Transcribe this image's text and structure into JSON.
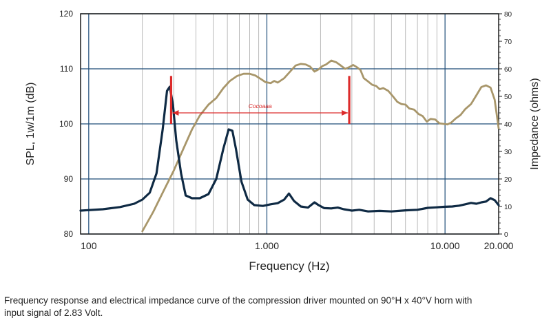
{
  "chart_data": {
    "type": "line",
    "x_axis": {
      "label": "Frequency (Hz)",
      "scale": "log",
      "range": [
        90,
        20000
      ],
      "ticks": [
        {
          "value": 100,
          "label": "100"
        },
        {
          "value": 1000,
          "label": "1.000"
        },
        {
          "value": 10000,
          "label": "10.000"
        },
        {
          "value": 20000,
          "label": "20.000"
        }
      ]
    },
    "y_left": {
      "label": "SPL, 1w/1m (dB)",
      "range": [
        80,
        120
      ],
      "ticks": [
        {
          "value": 80,
          "label": "80"
        },
        {
          "value": 90,
          "label": "90"
        },
        {
          "value": 100,
          "label": "100"
        },
        {
          "value": 110,
          "label": "110"
        },
        {
          "value": 120,
          "label": "120"
        }
      ]
    },
    "y_right": {
      "label": "Impedance (ohms)",
      "range": [
        0,
        80
      ],
      "ticks": [
        {
          "value": 0,
          "label": "0"
        },
        {
          "value": 10,
          "label": "10"
        },
        {
          "value": 20,
          "label": "20"
        },
        {
          "value": 30,
          "label": "30"
        },
        {
          "value": 40,
          "label": "40"
        },
        {
          "value": 50,
          "label": "50"
        },
        {
          "value": 60,
          "label": "60"
        },
        {
          "value": 70,
          "label": "70"
        },
        {
          "value": 80,
          "label": "80"
        }
      ]
    },
    "grid": true,
    "series": [
      {
        "color": "#a8966a",
        "axis": "left",
        "points": [
          [
            200,
            80.5
          ],
          [
            230,
            84
          ],
          [
            260,
            87.5
          ],
          [
            300,
            91.5
          ],
          [
            340,
            95.5
          ],
          [
            380,
            99
          ],
          [
            420,
            101.5
          ],
          [
            470,
            103.5
          ],
          [
            520,
            104.7
          ],
          [
            570,
            106.5
          ],
          [
            620,
            107.8
          ],
          [
            680,
            108.7
          ],
          [
            740,
            109.1
          ],
          [
            800,
            109.1
          ],
          [
            860,
            108.8
          ],
          [
            920,
            108.2
          ],
          [
            980,
            107.6
          ],
          [
            1050,
            107.4
          ],
          [
            1100,
            107.8
          ],
          [
            1150,
            107.5
          ],
          [
            1250,
            108.3
          ],
          [
            1350,
            109.5
          ],
          [
            1450,
            110.6
          ],
          [
            1550,
            110.9
          ],
          [
            1650,
            110.8
          ],
          [
            1750,
            110.4
          ],
          [
            1850,
            109.5
          ],
          [
            1950,
            109.9
          ],
          [
            2050,
            110.5
          ],
          [
            2150,
            110.8
          ],
          [
            2300,
            111.5
          ],
          [
            2450,
            111.2
          ],
          [
            2600,
            110.6
          ],
          [
            2750,
            110.0
          ],
          [
            2900,
            110.3
          ],
          [
            3050,
            110.7
          ],
          [
            3200,
            110.3
          ],
          [
            3350,
            109.8
          ],
          [
            3500,
            108.3
          ],
          [
            3700,
            107.7
          ],
          [
            3900,
            107.1
          ],
          [
            4100,
            106.9
          ],
          [
            4300,
            106.3
          ],
          [
            4500,
            106.5
          ],
          [
            4800,
            106.0
          ],
          [
            5100,
            105.0
          ],
          [
            5400,
            104.0
          ],
          [
            5700,
            103.6
          ],
          [
            6000,
            103.5
          ],
          [
            6300,
            102.8
          ],
          [
            6700,
            102.6
          ],
          [
            7100,
            101.8
          ],
          [
            7500,
            101.4
          ],
          [
            7900,
            100.4
          ],
          [
            8300,
            100.9
          ],
          [
            8800,
            100.8
          ],
          [
            9300,
            100.1
          ],
          [
            9800,
            100.0
          ],
          [
            10300,
            99.9
          ],
          [
            10800,
            100.2
          ],
          [
            11500,
            101.0
          ],
          [
            12200,
            101.6
          ],
          [
            13000,
            102.7
          ],
          [
            14000,
            103.6
          ],
          [
            15000,
            105.2
          ],
          [
            16000,
            106.7
          ],
          [
            17000,
            107.0
          ],
          [
            18000,
            106.6
          ],
          [
            19000,
            104.4
          ],
          [
            20000,
            99.2
          ]
        ]
      },
      {
        "color": "#0f2a44",
        "axis": "right",
        "points": [
          [
            90,
            8.5
          ],
          [
            120,
            9.0
          ],
          [
            150,
            9.8
          ],
          [
            180,
            11.0
          ],
          [
            200,
            12.5
          ],
          [
            220,
            15
          ],
          [
            240,
            22
          ],
          [
            260,
            38
          ],
          [
            275,
            52
          ],
          [
            285,
            53.5
          ],
          [
            297,
            47
          ],
          [
            310,
            34
          ],
          [
            330,
            22
          ],
          [
            350,
            14
          ],
          [
            380,
            13
          ],
          [
            420,
            13
          ],
          [
            470,
            14.5
          ],
          [
            520,
            20
          ],
          [
            570,
            31
          ],
          [
            610,
            38
          ],
          [
            640,
            37.5
          ],
          [
            670,
            31
          ],
          [
            720,
            19
          ],
          [
            780,
            12.5
          ],
          [
            850,
            10.5
          ],
          [
            950,
            10.2
          ],
          [
            1050,
            10.8
          ],
          [
            1150,
            11.2
          ],
          [
            1250,
            12.5
          ],
          [
            1330,
            14.7
          ],
          [
            1420,
            12
          ],
          [
            1550,
            10
          ],
          [
            1700,
            9.6
          ],
          [
            1850,
            11.5
          ],
          [
            1950,
            10.5
          ],
          [
            2100,
            9.4
          ],
          [
            2300,
            9.3
          ],
          [
            2500,
            9.6
          ],
          [
            2700,
            9.0
          ],
          [
            3000,
            8.5
          ],
          [
            3300,
            8.8
          ],
          [
            3700,
            8.2
          ],
          [
            4300,
            8.4
          ],
          [
            5000,
            8.2
          ],
          [
            6000,
            8.6
          ],
          [
            7000,
            8.8
          ],
          [
            8000,
            9.5
          ],
          [
            9000,
            9.7
          ],
          [
            10000,
            9.9
          ],
          [
            11000,
            10.0
          ],
          [
            12000,
            10.3
          ],
          [
            13000,
            10.8
          ],
          [
            14000,
            11.3
          ],
          [
            15000,
            11.0
          ],
          [
            16000,
            11.5
          ],
          [
            17000,
            11.8
          ],
          [
            18000,
            13.0
          ],
          [
            19000,
            12.3
          ],
          [
            20000,
            10.5
          ]
        ]
      }
    ],
    "bandwidth_marker": {
      "color": "#dc2b2b",
      "start_hz": 290,
      "end_hz": 2900,
      "label": "Cocoaaa"
    }
  },
  "caption": {
    "line1": "Frequency response and electrical impedance curve of the compression driver mounted on 90°H x 40°V horn with",
    "line2": "input signal of 2.83 Volt."
  }
}
